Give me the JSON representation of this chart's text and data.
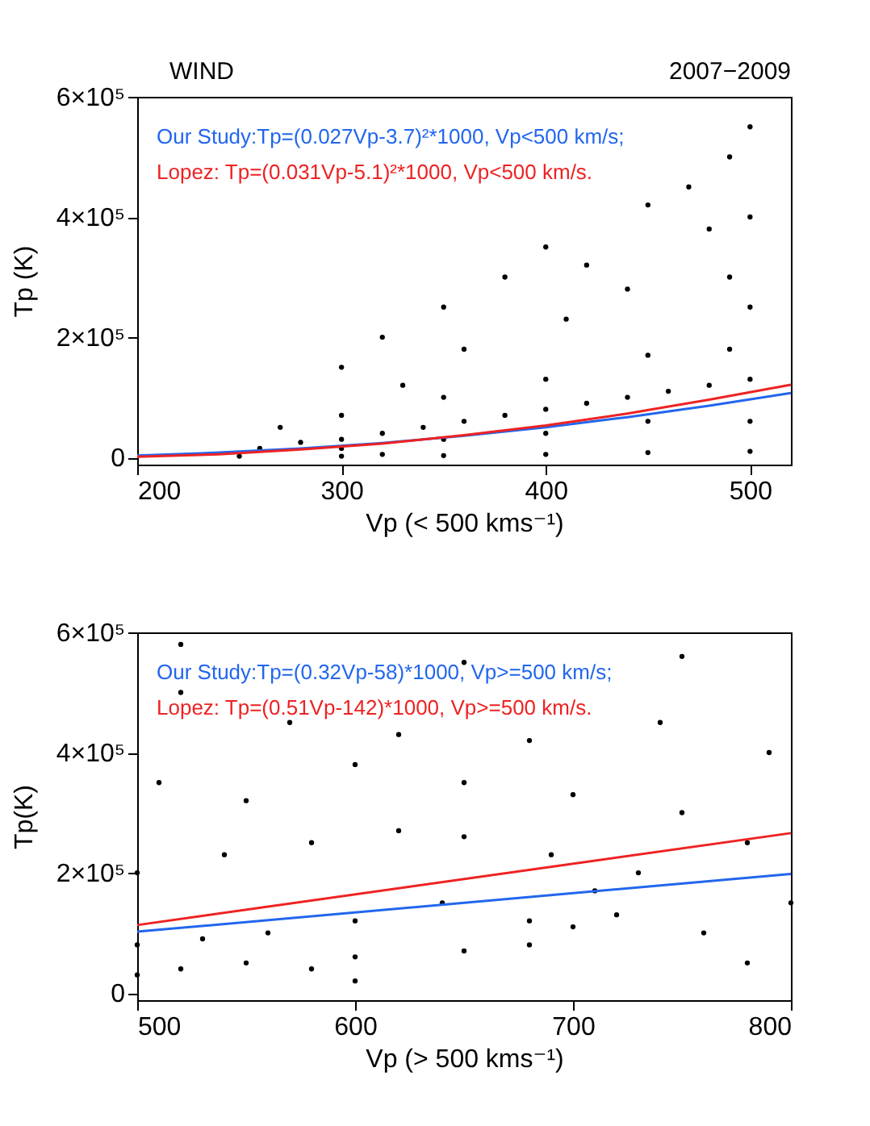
{
  "chart_data": [
    {
      "type": "scatter",
      "annotations": [
        "WIND",
        "2007−2009"
      ],
      "xlabel": "Vp (< 500 kms⁻¹)",
      "ylabel": "Tp (K)",
      "xlim": [
        200,
        520
      ],
      "xticks": [
        200,
        300,
        400,
        500
      ],
      "ylim": [
        -12000,
        600000
      ],
      "yticks": [
        {
          "value": 0,
          "label": "0"
        },
        {
          "value": 200000,
          "label": "2×10⁵"
        },
        {
          "value": 400000,
          "label": "4×10⁵"
        },
        {
          "value": 600000,
          "label": "6×10⁵"
        }
      ],
      "series": [
        {
          "type": "scatter",
          "color": "#000000",
          "x": [
            320,
            250,
            300,
            350,
            400,
            450,
            500,
            260,
            280,
            300,
            320,
            340,
            360,
            380,
            400,
            420,
            440,
            460,
            480,
            500,
            270,
            300,
            350,
            400,
            450,
            490,
            300,
            320,
            350,
            380,
            400,
            420,
            450,
            470,
            490,
            500,
            480,
            440,
            410,
            360,
            330,
            300,
            350,
            400,
            450,
            500,
            500,
            500,
            490
          ],
          "values": [
            5000,
            2000,
            2000,
            3000,
            5000,
            8000,
            10000,
            15000,
            25000,
            30000,
            40000,
            50000,
            60000,
            70000,
            80000,
            90000,
            100000,
            110000,
            120000,
            130000,
            50000,
            70000,
            100000,
            130000,
            170000,
            180000,
            150000,
            200000,
            250000,
            300000,
            350000,
            320000,
            420000,
            450000,
            500000,
            550000,
            380000,
            280000,
            230000,
            180000,
            120000,
            15000,
            30000,
            40000,
            60000,
            60000,
            250000,
            400000,
            300000
          ]
        },
        {
          "type": "line",
          "name": "Our Study:Tp=(0.027Vp-3.7)²*1000, Vp<500 km/s;",
          "color": "#2266ee",
          "x": [
            200,
            240,
            280,
            320,
            360,
            400,
            440,
            480,
            520
          ],
          "values": [
            3000,
            8000,
            15000,
            24000,
            36000,
            50000,
            67000,
            86000,
            107000
          ]
        },
        {
          "type": "line",
          "name": "Lopez: Tp=(0.031Vp-5.1)²*1000, Vp<500 km/s.",
          "color": "#ee2222",
          "x": [
            200,
            240,
            280,
            320,
            360,
            400,
            440,
            480,
            520
          ],
          "values": [
            1000,
            5000,
            13000,
            23000,
            37000,
            53000,
            73000,
            96000,
            121000
          ]
        }
      ]
    },
    {
      "type": "scatter",
      "xlabel": "Vp (> 500 kms⁻¹)",
      "ylabel": "Tp(K)",
      "xlim": [
        500,
        800
      ],
      "xticks": [
        500,
        600,
        700,
        800
      ],
      "ylim": [
        -12000,
        600000
      ],
      "yticks": [
        {
          "value": 0,
          "label": "0"
        },
        {
          "value": 200000,
          "label": "2×10⁵"
        },
        {
          "value": 400000,
          "label": "4×10⁵"
        },
        {
          "value": 600000,
          "label": "6×10⁵"
        }
      ],
      "series": [
        {
          "type": "scatter",
          "color": "#000000",
          "x": [
            500,
            520,
            550,
            580,
            600,
            650,
            680,
            700,
            720,
            500,
            530,
            560,
            600,
            640,
            680,
            710,
            500,
            540,
            580,
            620,
            650,
            690,
            730,
            510,
            550,
            600,
            650,
            700,
            750,
            780,
            520,
            570,
            620,
            680,
            740,
            790,
            800,
            760,
            780,
            520,
            650,
            750,
            600
          ],
          "values": [
            30000,
            40000,
            50000,
            40000,
            60000,
            70000,
            80000,
            110000,
            130000,
            80000,
            90000,
            100000,
            120000,
            150000,
            120000,
            170000,
            200000,
            230000,
            250000,
            270000,
            260000,
            230000,
            200000,
            350000,
            320000,
            380000,
            350000,
            330000,
            300000,
            250000,
            500000,
            450000,
            430000,
            420000,
            450000,
            400000,
            150000,
            100000,
            50000,
            580000,
            550000,
            560000,
            20000
          ]
        },
        {
          "type": "line",
          "name": "Our Study:Tp=(0.32Vp-58)*1000, Vp>=500 km/s;",
          "color": "#2266ee",
          "x": [
            500,
            800
          ],
          "values": [
            102000,
            198000
          ]
        },
        {
          "type": "line",
          "name": "Lopez: Tp=(0.51Vp-142)*1000, Vp>=500 km/s.",
          "color": "#ee2222",
          "x": [
            500,
            800
          ],
          "values": [
            113000,
            266000
          ]
        }
      ]
    }
  ]
}
